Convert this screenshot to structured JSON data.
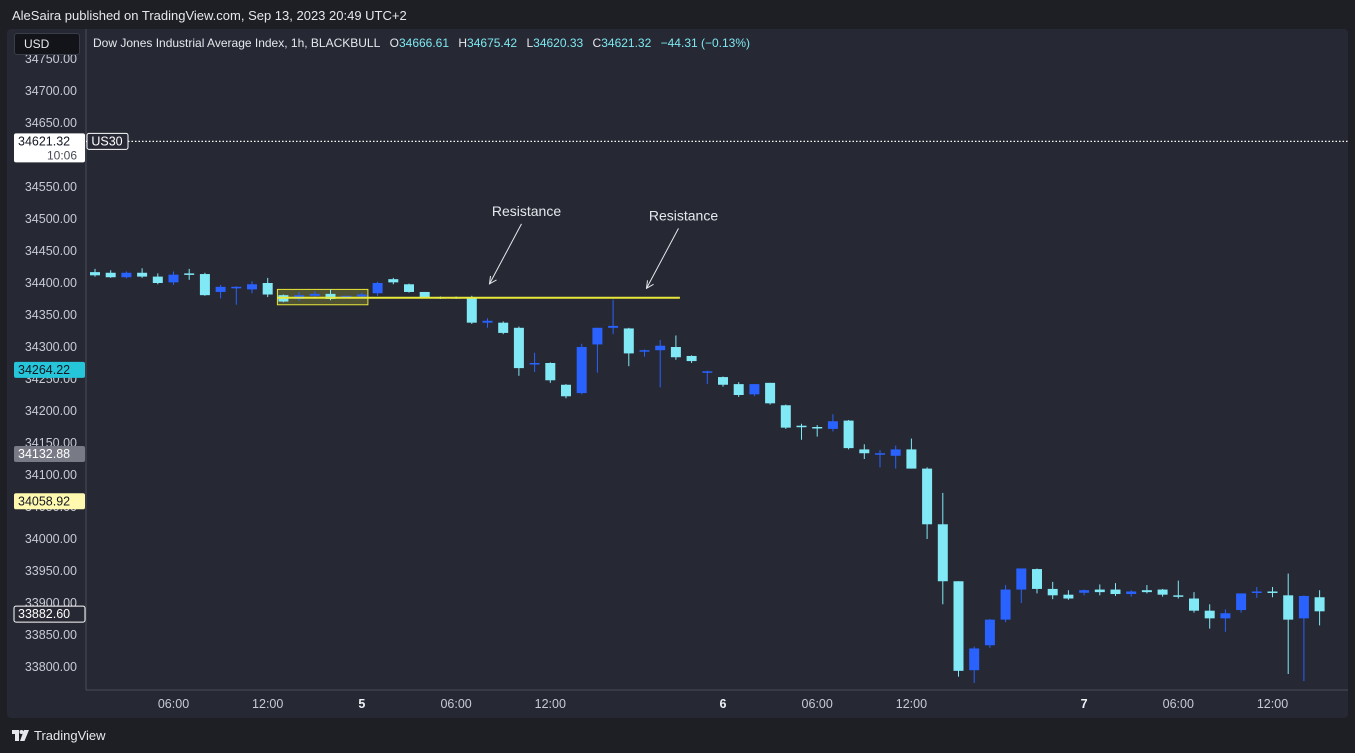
{
  "header": {
    "published_by": "AleSaira published on TradingView.com, Sep 13, 2023 20:49 UTC+2"
  },
  "toolbar": {
    "currency": "USD"
  },
  "legend": {
    "symbol_desc": "Dow Jones Industrial Average Index, 1h, BLACKBULL",
    "o_label": "O",
    "o_value": "34666.61",
    "h_label": "H",
    "h_value": "34675.42",
    "l_label": "L",
    "l_value": "34620.33",
    "c_label": "C",
    "c_value": "34621.32",
    "change": "−44.31 (−0.13%)"
  },
  "footer": {
    "brand": "TradingView",
    "logo_icon": "tradingview-logo-icon"
  },
  "colors": {
    "background": "#262833",
    "up_candle": "#2962ff",
    "down_candle": "#80e9f5",
    "resistance_line": "#e8e83a",
    "last_price_line": "#ffffff",
    "cyan_marker": "#26c6da",
    "gray_marker": "#787b86",
    "yellow_marker": "#fff9b0"
  },
  "chart_data": {
    "type": "candlestick",
    "title": "Dow Jones Industrial Average Index, 1h, BLACKBULL",
    "interval": "1h",
    "y_ticks": [
      "34750.00",
      "34700.00",
      "34650.00",
      "34550.00",
      "34500.00",
      "34450.00",
      "34400.00",
      "34350.00",
      "34300.00",
      "34250.00",
      "34200.00",
      "34150.00",
      "34100.00",
      "34050.00",
      "34000.00",
      "33950.00",
      "33900.00",
      "33850.00",
      "33800.00"
    ],
    "ylim": [
      33770,
      34760
    ],
    "x_ticks": [
      {
        "label": "06:00",
        "bold": false,
        "bar": 5
      },
      {
        "label": "12:00",
        "bold": false,
        "bar": 11
      },
      {
        "label": "5",
        "bold": true,
        "bar": 17
      },
      {
        "label": "06:00",
        "bold": false,
        "bar": 23
      },
      {
        "label": "12:00",
        "bold": false,
        "bar": 29
      },
      {
        "label": "6",
        "bold": true,
        "bar": 40
      },
      {
        "label": "06:00",
        "bold": false,
        "bar": 46
      },
      {
        "label": "12:00",
        "bold": false,
        "bar": 52
      },
      {
        "label": "7",
        "bold": true,
        "bar": 63
      },
      {
        "label": "06:00",
        "bold": false,
        "bar": 69
      },
      {
        "label": "12:00",
        "bold": false,
        "bar": 75
      }
    ],
    "candles": [
      [
        34417,
        34422,
        34410,
        34412
      ],
      [
        34416,
        34420,
        34408,
        34409
      ],
      [
        34409,
        34418,
        34407,
        34416
      ],
      [
        34416,
        34423,
        34408,
        34410
      ],
      [
        34410,
        34415,
        34398,
        34400
      ],
      [
        34401,
        34418,
        34397,
        34413
      ],
      [
        34415,
        34422,
        34405,
        34413
      ],
      [
        34414,
        34416,
        34380,
        34381
      ],
      [
        34386,
        34397,
        34376,
        34394
      ],
      [
        34393,
        34395,
        34366,
        34394
      ],
      [
        34390,
        34403,
        34384,
        34398
      ],
      [
        34400,
        34408,
        34378,
        34382
      ],
      [
        34381,
        34382,
        34370,
        34371
      ],
      [
        34375,
        34386,
        34372,
        34381
      ],
      [
        34380,
        34387,
        34376,
        34383
      ],
      [
        34383,
        34390,
        34373,
        34375
      ],
      [
        34378,
        34380,
        34377,
        34380
      ],
      [
        34379,
        34385,
        34376,
        34382
      ],
      [
        34384,
        34402,
        34380,
        34400
      ],
      [
        34406,
        34408,
        34398,
        34401
      ],
      [
        34398,
        34399,
        34385,
        34386
      ],
      [
        34386,
        34386,
        34377,
        34378
      ],
      [
        34378,
        34379,
        34375,
        34376
      ],
      [
        34378,
        34379,
        34375,
        34377
      ],
      [
        34377,
        34380,
        34336,
        34338
      ],
      [
        34338,
        34345,
        34330,
        34341
      ],
      [
        34338,
        34340,
        34320,
        34322
      ],
      [
        34330,
        34332,
        34255,
        34267
      ],
      [
        34275,
        34291,
        34261,
        34275
      ],
      [
        34275,
        34276,
        34244,
        34248
      ],
      [
        34241,
        34242,
        34220,
        34223
      ],
      [
        34228,
        34305,
        34226,
        34300
      ],
      [
        34304,
        34330,
        34260,
        34330
      ],
      [
        34330,
        34374,
        34320,
        34333
      ],
      [
        34329,
        34330,
        34270,
        34290
      ],
      [
        34295,
        34296,
        34285,
        34295
      ],
      [
        34295,
        34311,
        34237,
        34302
      ],
      [
        34300,
        34318,
        34280,
        34284
      ],
      [
        34286,
        34287,
        34275,
        34278
      ],
      [
        34260,
        34263,
        34242,
        34262
      ],
      [
        34253,
        34254,
        34238,
        34241
      ],
      [
        34242,
        34245,
        34222,
        34225
      ],
      [
        34226,
        34242,
        34223,
        34242
      ],
      [
        34244,
        34244,
        34210,
        34212
      ],
      [
        34209,
        34210,
        34172,
        34174
      ],
      [
        34177,
        34180,
        34155,
        34175
      ],
      [
        34175,
        34178,
        34160,
        34174
      ],
      [
        34172,
        34195,
        34168,
        34184
      ],
      [
        34185,
        34186,
        34140,
        34142
      ],
      [
        34140,
        34148,
        34125,
        34134
      ],
      [
        34133,
        34139,
        34112,
        34134
      ],
      [
        34130,
        34146,
        34110,
        34140
      ],
      [
        34140,
        34157,
        34110,
        34110
      ],
      [
        34110,
        34112,
        34000,
        34023
      ],
      [
        34023,
        34072,
        33898,
        33934
      ],
      [
        33934,
        33934,
        33785,
        33794
      ],
      [
        33795,
        33832,
        33775,
        33829
      ],
      [
        33834,
        33875,
        33830,
        33874
      ],
      [
        33874,
        33928,
        33870,
        33921
      ],
      [
        33921,
        33953,
        33900,
        33954
      ],
      [
        33953,
        33954,
        33915,
        33922
      ],
      [
        33922,
        33933,
        33906,
        33912
      ],
      [
        33913,
        33920,
        33905,
        33907
      ],
      [
        33916,
        33921,
        33912,
        33920
      ],
      [
        33921,
        33929,
        33912,
        33917
      ],
      [
        33921,
        33931,
        33911,
        33914
      ],
      [
        33914,
        33920,
        33910,
        33918
      ],
      [
        33920,
        33928,
        33915,
        33917
      ],
      [
        33921,
        33922,
        33910,
        33913
      ],
      [
        33912,
        33935,
        33907,
        33911
      ],
      [
        33907,
        33917,
        33885,
        33888
      ],
      [
        33888,
        33898,
        33860,
        33876
      ],
      [
        33876,
        33890,
        33855,
        33884
      ],
      [
        33889,
        33912,
        33885,
        33915
      ],
      [
        33916,
        33925,
        33908,
        33918
      ],
      [
        33918,
        33925,
        33909,
        33916
      ],
      [
        33912,
        33946,
        33789,
        33874
      ],
      [
        33876,
        33912,
        33778,
        33911
      ],
      [
        33909,
        33920,
        33865,
        33887
      ]
    ],
    "resistance_level": 34377,
    "resistance_start_bar": 12,
    "resistance_end_bar": 37,
    "highlight_box": {
      "bar_start": 12,
      "bar_end": 17,
      "price_low": 34366,
      "price_high": 34390
    },
    "annotations": [
      {
        "text": "Resistance",
        "bar": 25,
        "price": 34383
      },
      {
        "text": "Resistance",
        "bar": 35,
        "price": 34376
      }
    ],
    "last_price": 34621.32,
    "last_price_symbol": "US30",
    "countdown": "10:06",
    "price_markers": [
      {
        "value": "34621.32",
        "style": "white"
      },
      {
        "value": "34264.22",
        "style": "cyan"
      },
      {
        "value": "34132.88",
        "style": "gray"
      },
      {
        "value": "34058.92",
        "style": "yellow"
      },
      {
        "value": "33882.60",
        "style": "outline"
      }
    ]
  }
}
